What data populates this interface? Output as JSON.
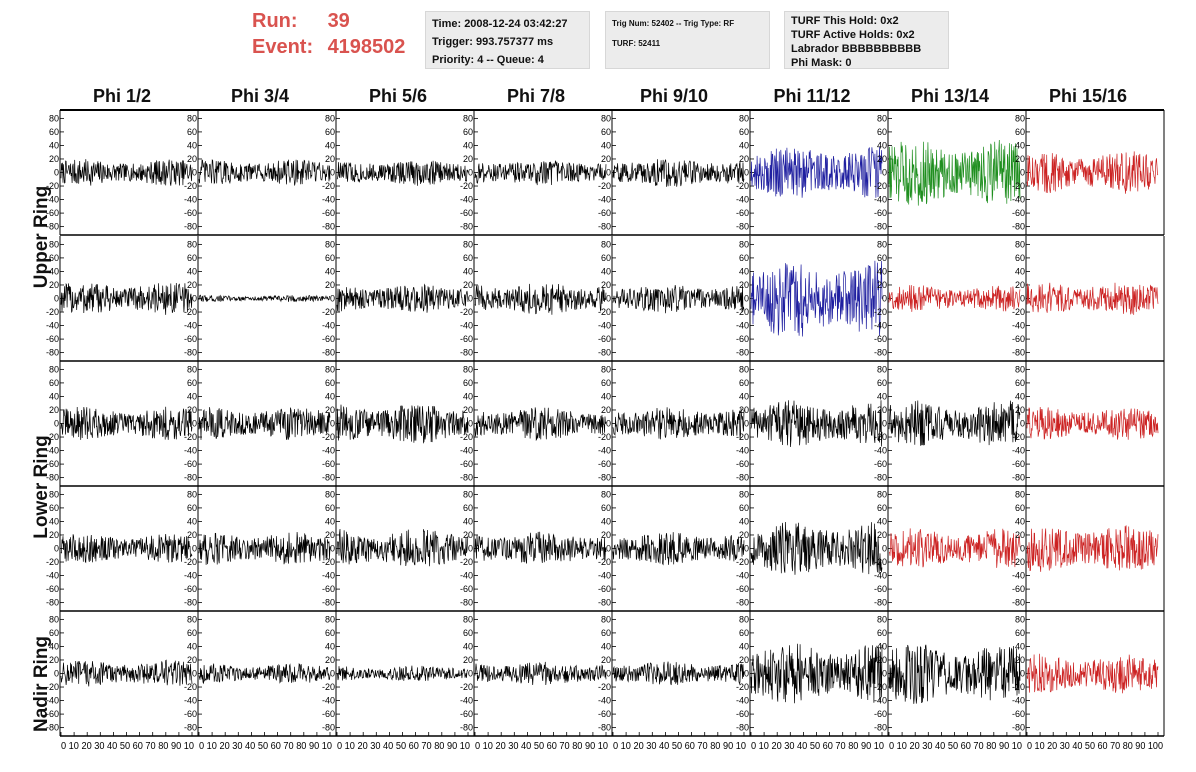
{
  "header": {
    "run_label": "Run:",
    "run_value": "39",
    "event_label": "Event:",
    "event_value": "4198502"
  },
  "info_time": {
    "time": "Time: 2008-12-24 03:42:27",
    "trigger": "Trigger: 993.757377 ms",
    "priority": "Priority: 4 -- Queue: 4"
  },
  "info_trig": {
    "trig": "Trig Num: 52402 -- Trig Type: RF",
    "turf": "TURF: 52411"
  },
  "info_turf": {
    "this_hold": "TURF This Hold: 0x2",
    "active_holds": "TURF Active Holds: 0x2",
    "labrador": "Labrador BBBBBBBBBB",
    "phi_mask": "Phi Mask: 0"
  },
  "columns": [
    "Phi 1/2",
    "Phi 3/4",
    "Phi 5/6",
    "Phi 7/8",
    "Phi 9/10",
    "Phi 11/12",
    "Phi 13/14",
    "Phi 15/16"
  ],
  "ring_labels": {
    "upper": "Upper Ring",
    "lower": "Lower Ring",
    "nadir": "Nadir Ring"
  },
  "colors": {
    "header_red": "#d9534f",
    "waveform_black": "#000000",
    "waveform_blue": "#1f1fa0",
    "waveform_green": "#1f8f1f",
    "waveform_red": "#cc2222",
    "info_box_bg": "#ececec"
  },
  "chart_data": {
    "type": "line",
    "y_ticks": [
      "80",
      "60",
      "40",
      "20",
      "0",
      "-20",
      "-40",
      "-60",
      "-80"
    ],
    "y_range": [
      -85,
      85
    ],
    "x_tick_label_groups": [
      "0 10 20 30 40 50 60 70 80 90 10",
      "0 10 20 30 40 50 60 70 80 90 10",
      "0 10 20 30 40 50 60 70 80 90 10",
      "0 10 20 30 40 50 60 70 80 90 10",
      "0 10 20 30 40 50 60 70 80 90 10",
      "0 10 20 30 40 50 60 70 80 90 10",
      "0 10 20 30 40 50 60 70 80 90 10",
      "0 10 20 30 40 50 60 70 80 90 100"
    ],
    "x_range": [
      0,
      100
    ],
    "panel_colors": [
      [
        "black",
        "black",
        "black",
        "black",
        "black",
        "blue",
        "green",
        "red"
      ],
      [
        "black",
        "black",
        "black",
        "black",
        "black",
        "blue",
        "red",
        "red"
      ],
      [
        "black",
        "black",
        "black",
        "black",
        "black",
        "black",
        "black",
        "red"
      ],
      [
        "black",
        "black",
        "black",
        "black",
        "black",
        "black",
        "red",
        "red"
      ],
      [
        "black",
        "black",
        "black",
        "black",
        "black",
        "black",
        "black",
        "red"
      ]
    ],
    "panel_amplitudes": [
      [
        20,
        20,
        20,
        20,
        22,
        40,
        50,
        32
      ],
      [
        25,
        5,
        22,
        25,
        22,
        60,
        20,
        25
      ],
      [
        25,
        25,
        30,
        25,
        25,
        35,
        35,
        25
      ],
      [
        22,
        25,
        30,
        25,
        25,
        40,
        30,
        35
      ],
      [
        20,
        15,
        12,
        18,
        18,
        45,
        45,
        30
      ]
    ]
  }
}
